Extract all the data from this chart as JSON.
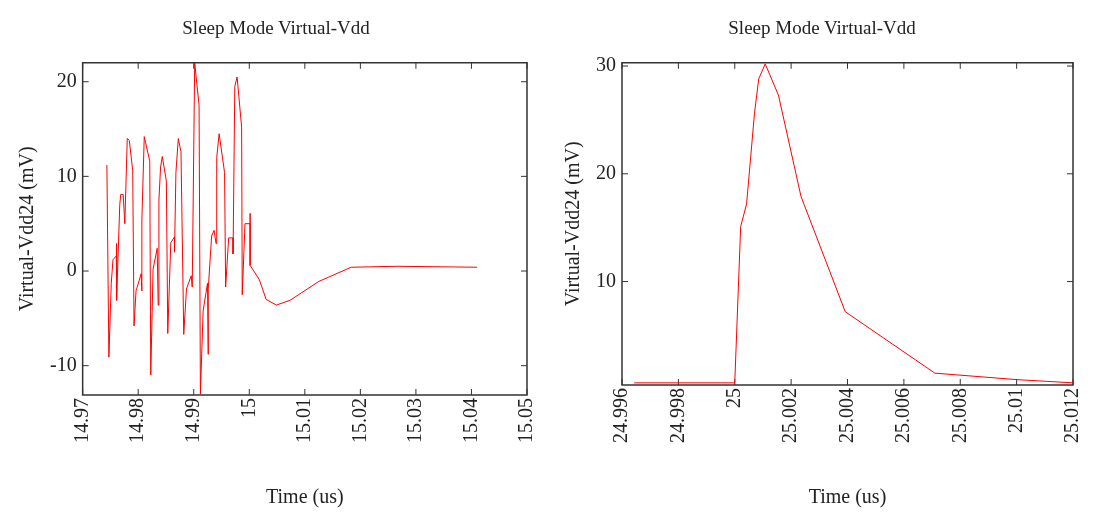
{
  "chart_data": [
    {
      "type": "line",
      "title": "Sleep Mode Virtual-Vdd",
      "xlabel": "Time (us)",
      "ylabel": "Virtual-Vdd24 (mV)",
      "xlim": [
        14.97,
        15.05
      ],
      "xticks": [
        14.97,
        14.98,
        14.99,
        15,
        15.01,
        15.02,
        15.03,
        15.04,
        15.05
      ],
      "ylim": [
        -13.1,
        22
      ],
      "yticks": [
        -10,
        0,
        10,
        20
      ],
      "grid": false,
      "legend": false,
      "marker": "none",
      "line_style": "solid",
      "series": [
        {
          "color": "#ff0000",
          "x": [
            14.97436,
            14.97472,
            14.97515,
            14.97546,
            14.97607,
            14.97609,
            14.97613,
            14.97668,
            14.97686,
            14.97729,
            14.97759,
            14.97803,
            14.9784,
            14.97901,
            14.97925,
            14.97961,
            14.98053,
            14.98066,
            14.98066,
            14.98109,
            14.98208,
            14.98226,
            14.98268,
            14.98342,
            14.9836,
            14.98373,
            14.98403,
            14.98434,
            14.98507,
            14.98532,
            14.98587,
            14.98654,
            14.98654,
            14.98679,
            14.98722,
            14.9877,
            14.9882,
            14.98869,
            14.98954,
            14.98973,
            14.99017,
            14.99096,
            14.9912,
            14.99169,
            14.99248,
            14.99261,
            14.99261,
            14.99322,
            14.99366,
            14.99402,
            14.99414,
            14.99457,
            14.99555,
            14.99574,
            14.99629,
            14.99708,
            14.99708,
            14.99739,
            14.99781,
            14.99862,
            14.99873,
            14.99923,
            15.00015,
            15.00015,
            15.00015,
            15.0018,
            15.00303,
            15.00487,
            15.00732,
            15.01252,
            15.01835,
            15.02662,
            15.04101
          ],
          "values": [
            11.2,
            -9.1,
            -1.3,
            1.2,
            1.6,
            2.9,
            -3.1,
            7.0,
            8.1,
            8.1,
            5.0,
            14.0,
            13.8,
            10.6,
            -5.8,
            -2.1,
            -0.3,
            -2.1,
            5.4,
            14.2,
            11.6,
            -11.0,
            0.2,
            2.4,
            -3.6,
            7.5,
            11.0,
            12.1,
            9.5,
            -6.6,
            3.0,
            3.6,
            2.0,
            10.4,
            14.0,
            12.6,
            -6.7,
            -1.9,
            -0.5,
            -1.7,
            22.0,
            17.5,
            -13.0,
            -4.2,
            -1.3,
            -8.8,
            -1.9,
            3.7,
            4.3,
            2.9,
            12.0,
            14.5,
            10.4,
            -1.7,
            3.5,
            3.5,
            1.8,
            19.5,
            20.5,
            15.2,
            -2.5,
            5.0,
            5.0,
            6.1,
            0.6,
            -0.9,
            -3.0,
            -3.6,
            -3.1,
            -1.1,
            0.4,
            0.5,
            0.4
          ]
        }
      ]
    },
    {
      "type": "line",
      "title": "Sleep Mode Virtual-Vdd",
      "xlabel": "Time (us)",
      "ylabel": "Virtual-Vdd24 (mV)",
      "xlim": [
        24.996,
        25.012
      ],
      "xticks": [
        24.996,
        24.998,
        25,
        25.002,
        25.004,
        25.006,
        25.008,
        25.01,
        25.012
      ],
      "ylim": [
        0.4,
        30.3
      ],
      "yticks": [
        10,
        20,
        30
      ],
      "grid": false,
      "legend": false,
      "marker": "none",
      "line_style": "solid",
      "series": [
        {
          "color": "#ff0000",
          "x": [
            24.99643,
            25.0,
            25.00021,
            25.00042,
            25.0007,
            25.00085,
            25.00108,
            25.00155,
            25.00235,
            25.00392,
            25.0071,
            25.01,
            25.012
          ],
          "values": [
            0.6,
            0.6,
            15.1,
            17.2,
            25.6,
            28.8,
            30.2,
            27.3,
            17.9,
            7.2,
            1.5,
            0.9,
            0.6
          ]
        }
      ]
    }
  ]
}
